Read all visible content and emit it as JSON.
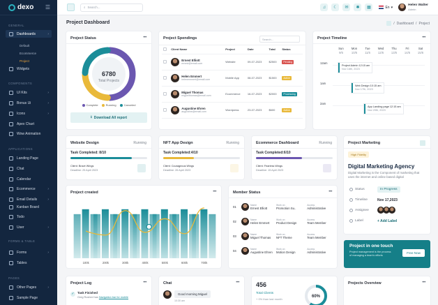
{
  "app": {
    "name": "dexo"
  },
  "topbar": {
    "search_placeholder": "Search...",
    "language": "En",
    "user_name": "Helen Walter",
    "user_role": "Admin"
  },
  "sidebar": {
    "sections": [
      "GENERAL",
      "COMPONENTS",
      "APPLICATIONS",
      "FORMS & TABLE",
      "PAGES"
    ],
    "items": [
      "Dashboards",
      "Widgets",
      "UI Kits",
      "Bonus Ui",
      "Icons",
      "Apex Chart",
      "Wow Animation",
      "Landing Page",
      "Chat",
      "Calendar",
      "Ecommerce",
      "Email Details",
      "Kanban Board",
      "Todo",
      "User",
      "Forms",
      "Tables",
      "Other Pages",
      "Sample Page"
    ],
    "sub_items": [
      "Default",
      "Ecommerce",
      "Project"
    ]
  },
  "page": {
    "title": "Project Dashboard",
    "breadcrumb": [
      "Dashboard",
      "Project"
    ]
  },
  "project_status": {
    "title": "Project Status",
    "total": "6780",
    "total_label": "Total Projects",
    "legend": [
      "Complete",
      "Running",
      "Canceled"
    ],
    "colors": [
      "#6b57b0",
      "#e9b93a",
      "#1b8d99"
    ],
    "segments": [
      0.5,
      0.25,
      0.25
    ],
    "button": "Download All report"
  },
  "spendings": {
    "title": "Project Spendings",
    "search_placeholder": "Search...",
    "columns": [
      "Client Name",
      "Project",
      "Date",
      "Total",
      "Status"
    ],
    "rows": [
      {
        "name": "Ernest Elliott",
        "email": "ernest@email.com",
        "project": "Website",
        "date": "09-07-2023",
        "total": "$2500",
        "status": "Pending",
        "color": "#d9534f"
      },
      {
        "name": "Helen Emmert",
        "email": "helenemmert@email.com",
        "project": "Mobile App",
        "date": "08-07-2023",
        "total": "$1500",
        "status": "Active",
        "color": "#e9b93a"
      },
      {
        "name": "Miguel Thomas",
        "email": "miguelthomas@email.com",
        "project": "Ecommerce",
        "date": "16-07-2023",
        "total": "$2000",
        "status": "Processing",
        "color": "#1b8d99"
      },
      {
        "name": "Augustine Ehren",
        "email": "augustine@email.com",
        "project": "Wordpress",
        "date": "23-07-2023",
        "total": "$600",
        "status": "Active",
        "color": "#e9b93a"
      }
    ]
  },
  "timeline": {
    "title": "Project Timeline",
    "days": [
      {
        "d": "Sun",
        "n": "9/6"
      },
      {
        "d": "Mon",
        "n": "10/6"
      },
      {
        "d": "Tue",
        "n": "11/6"
      },
      {
        "d": "Wed",
        "n": "12/6"
      },
      {
        "d": "Thu",
        "n": "13/6"
      },
      {
        "d": "Fri",
        "n": "14/6"
      },
      {
        "d": "Sat",
        "n": "15/6"
      }
    ],
    "times": [
      "12am",
      "1am",
      "2am"
    ],
    "events": [
      {
        "title": "Project Admin 12:15 am",
        "date": "Nov 16th, 2023"
      },
      {
        "title": "Web Design 10:15 am",
        "date": "Nov 17th, 2023"
      },
      {
        "title": "App Landing page 12:15 am",
        "date": "Nov 20th, 2023"
      }
    ]
  },
  "tasks": [
    {
      "title": "Website Design",
      "state": "Running",
      "completed": "Task Completed: 8/10",
      "progress": 0.8,
      "color": "#1b8d99",
      "client": "Client: Brave Wings",
      "deadline": "Deadline: 25 April 2023"
    },
    {
      "title": "NFT App Design",
      "state": "Running",
      "completed": "Task Completed:4/10",
      "progress": 0.4,
      "color": "#e9b93a",
      "client": "Client: Courageous Wings",
      "deadline": "Deadline: 26 April 2023"
    },
    {
      "title": "Ecommerce Dashboard",
      "state": "Running",
      "completed": "Task Completed:6/10",
      "progress": 0.6,
      "color": "#6b57b0",
      "client": "Client: Fearless Wings",
      "deadline": "Deadline: 15 April 2023"
    }
  ],
  "marketing": {
    "title": "Project Marketing",
    "badge": "High Fidelity",
    "heading": "Digital Marketing Agency",
    "description": "Digital Marketing is the Component of marketing that uses the internet and online based digital",
    "fields": [
      {
        "label": "Status",
        "value": "In Progress"
      },
      {
        "label": "Timeline",
        "value": "Nov 17,2023"
      },
      {
        "label": "Assignee",
        "value": ""
      },
      {
        "label": "Label",
        "value": "+ Add Label"
      }
    ]
  },
  "promo": {
    "title": "Project in one touch",
    "text": "Project management is the process of managing a team's efforts",
    "button": "Free Now"
  },
  "created": {
    "title": "Project created"
  },
  "chart_data": {
    "type": "bar",
    "categories": [
      "100k",
      "200k",
      "300k",
      "400k",
      "500k",
      "600k",
      "700k"
    ],
    "series": [
      {
        "values": [
          72,
          72,
          72,
          72,
          72,
          72,
          72
        ]
      }
    ],
    "line": [
      40,
      34,
      70,
      38,
      58,
      36,
      74
    ],
    "colors": [
      "#1b8d99",
      "#e9b93a"
    ]
  },
  "member_status": {
    "title": "Member Status",
    "labels": [
      "Name",
      "Work on",
      "Access"
    ],
    "rows": [
      {
        "no": "01",
        "name": "Ernest Elliott",
        "work": "Promotion Su..",
        "access": "Administrative"
      },
      {
        "no": "02",
        "name": "Helen Emmert",
        "work": "Product Design",
        "access": "Team Member"
      },
      {
        "no": "03",
        "name": "Miguel Thomas",
        "work": "NFT Theme",
        "access": "Team Member"
      },
      {
        "no": "04",
        "name": "Augustine Ehren",
        "work": "Motion Design",
        "access": "Administrative"
      }
    ]
  },
  "project_log": {
    "title": "Project Log",
    "task": "Task Finished",
    "text": "Greg Rushed has",
    "link": "Navigation bar for mobile"
  },
  "chat": {
    "title": "Chat",
    "message": "Good morning Miguel",
    "time": "10:30 am"
  },
  "clients": {
    "value": "456",
    "label": "Total Clients",
    "delta": "+ 0% than last month",
    "percent": "60%"
  },
  "overview": {
    "title": "Projects Overview"
  }
}
